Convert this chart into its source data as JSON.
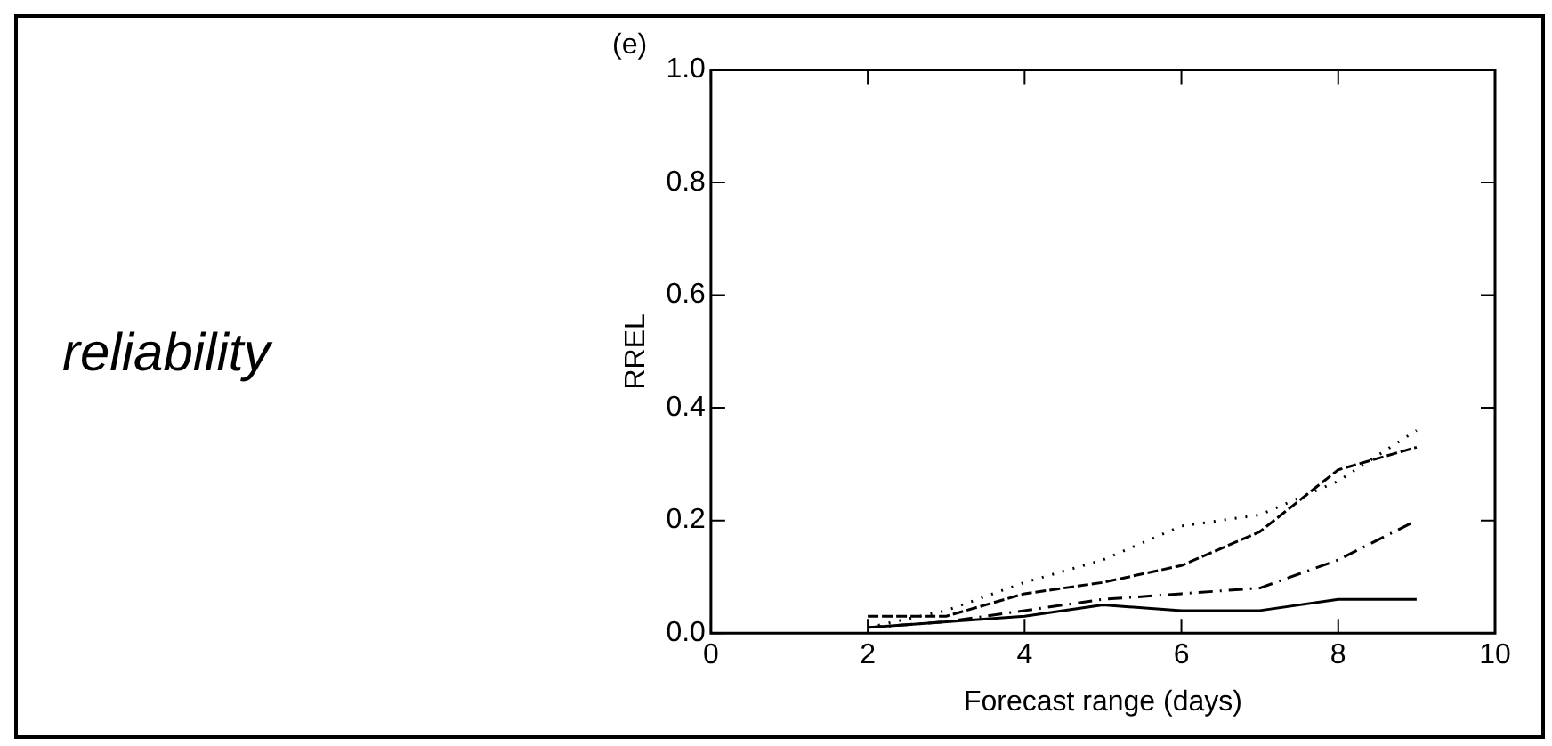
{
  "chart_data": {
    "type": "line",
    "title": "(e)",
    "xlabel": "Forecast range (days)",
    "ylabel": "RREL",
    "annotations": [
      "reliability"
    ],
    "x": [
      2,
      3,
      4,
      5,
      6,
      7,
      8,
      9
    ],
    "xlim": [
      0,
      10
    ],
    "xticks": [
      0,
      2,
      4,
      6,
      8,
      10
    ],
    "ylim": [
      0,
      1
    ],
    "yticks": [
      {
        "value": 0,
        "label": "0.0"
      },
      {
        "value": 0.2,
        "label": "0.2"
      },
      {
        "value": 0.4,
        "label": "0.4"
      },
      {
        "value": 0.6,
        "label": "0.6"
      },
      {
        "value": 0.8,
        "label": "0.8"
      },
      {
        "value": 1,
        "label": "1.0"
      }
    ],
    "grid": false,
    "legend": false,
    "marker": "none",
    "series": [
      {
        "color": "#000000",
        "line_style": "solid",
        "values": [
          0.01,
          0.02,
          0.03,
          0.05,
          0.04,
          0.04,
          0.06,
          0.06
        ]
      },
      {
        "color": "#000000",
        "line_style": "dashed",
        "values": [
          0.03,
          0.03,
          0.07,
          0.09,
          0.12,
          0.18,
          0.29,
          0.33
        ]
      },
      {
        "color": "#000000",
        "line_style": "dashdot",
        "values": [
          0.01,
          0.02,
          0.04,
          0.06,
          0.07,
          0.08,
          0.13,
          0.2
        ]
      },
      {
        "color": "#000000",
        "line_style": "dotted",
        "values": [
          0.01,
          0.04,
          0.09,
          0.13,
          0.19,
          0.21,
          0.27,
          0.36
        ]
      }
    ]
  }
}
